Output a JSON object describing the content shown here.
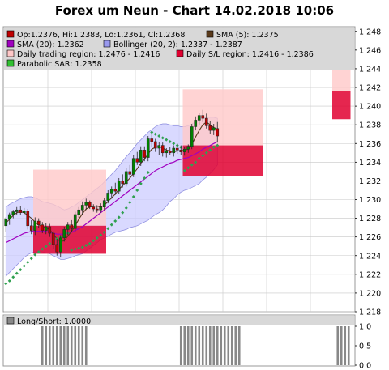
{
  "title": "Forex um Neun - Chart 14.02.2018 10:06",
  "colors": {
    "background": "#ffffff",
    "legend_bg": "#d4d4d4",
    "grid": "#c8c8c8",
    "candle_up": "#008000",
    "candle_down": "#c00000",
    "sma5": "#5a3a1a",
    "sma20": "#a000c0",
    "bollinger_fill": "#ccccff",
    "bollinger_line": "#8888dd",
    "daily_range": "#ffc8c8",
    "daily_sl": "#e00030",
    "sar": "#30a050",
    "longshort": "#888888"
  },
  "legend": [
    {
      "key": "ohlc",
      "label": "Op:1.2376, Hi:1.2383, Lo:1.2361, Cl:1.2368",
      "color": "#c00000"
    },
    {
      "key": "sma5",
      "label": "SMA (5): 1.2375",
      "color": "#5a3a1a"
    },
    {
      "key": "sma20",
      "label": "SMA (20): 1.2362",
      "color": "#a000c0"
    },
    {
      "key": "bollinger",
      "label": "Bollinger (20, 2): 1.2337 - 1.2387",
      "color": "#9999ee"
    },
    {
      "key": "daily_range",
      "label": "Daily trading region: 1.2476 - 1.2416",
      "color": "#ffc8c8"
    },
    {
      "key": "daily_sl",
      "label": "Daily S/L region: 1.2416 - 1.2386",
      "color": "#e00030"
    },
    {
      "key": "sar",
      "label": "Parabolic SAR: 1.2358",
      "color": "#30c030"
    }
  ],
  "chart_data": [
    {
      "type": "candlestick",
      "title": "Forex um Neun - Chart 14.02.2018 10:06",
      "ylim": [
        1.218,
        1.2485
      ],
      "yticks": [
        "1.218",
        "1.220",
        "1.222",
        "1.224",
        "1.226",
        "1.228",
        "1.230",
        "1.232",
        "1.234",
        "1.236",
        "1.238",
        "1.240",
        "1.242",
        "1.244",
        "1.246",
        "1.248"
      ],
      "candles": [
        {
          "o": 1.2272,
          "h": 1.2281,
          "l": 1.2265,
          "c": 1.2279
        },
        {
          "o": 1.2279,
          "h": 1.2286,
          "l": 1.2273,
          "c": 1.2284
        },
        {
          "o": 1.2284,
          "h": 1.2289,
          "l": 1.228,
          "c": 1.2287
        },
        {
          "o": 1.2287,
          "h": 1.2292,
          "l": 1.2284,
          "c": 1.2289
        },
        {
          "o": 1.2289,
          "h": 1.2293,
          "l": 1.2284,
          "c": 1.2286
        },
        {
          "o": 1.2286,
          "h": 1.2291,
          "l": 1.2283,
          "c": 1.2288
        },
        {
          "o": 1.2288,
          "h": 1.229,
          "l": 1.2268,
          "c": 1.2272
        },
        {
          "o": 1.2272,
          "h": 1.2278,
          "l": 1.2263,
          "c": 1.2267
        },
        {
          "o": 1.2267,
          "h": 1.2281,
          "l": 1.2262,
          "c": 1.2277
        },
        {
          "o": 1.2277,
          "h": 1.228,
          "l": 1.227,
          "c": 1.2273
        },
        {
          "o": 1.2273,
          "h": 1.2276,
          "l": 1.2264,
          "c": 1.2267
        },
        {
          "o": 1.2267,
          "h": 1.2275,
          "l": 1.2263,
          "c": 1.2271
        },
        {
          "o": 1.2271,
          "h": 1.2274,
          "l": 1.226,
          "c": 1.2264
        },
        {
          "o": 1.2264,
          "h": 1.2266,
          "l": 1.2247,
          "c": 1.2252
        },
        {
          "o": 1.2252,
          "h": 1.2258,
          "l": 1.224,
          "c": 1.2244
        },
        {
          "o": 1.2244,
          "h": 1.2262,
          "l": 1.2238,
          "c": 1.2259
        },
        {
          "o": 1.2259,
          "h": 1.2271,
          "l": 1.2255,
          "c": 1.2268
        },
        {
          "o": 1.2268,
          "h": 1.2276,
          "l": 1.2262,
          "c": 1.2273
        },
        {
          "o": 1.2273,
          "h": 1.2278,
          "l": 1.2265,
          "c": 1.2269
        },
        {
          "o": 1.2269,
          "h": 1.2287,
          "l": 1.2266,
          "c": 1.2284
        },
        {
          "o": 1.2284,
          "h": 1.2292,
          "l": 1.228,
          "c": 1.2289
        },
        {
          "o": 1.2289,
          "h": 1.2298,
          "l": 1.2284,
          "c": 1.2294
        },
        {
          "o": 1.2294,
          "h": 1.2301,
          "l": 1.2289,
          "c": 1.2297
        },
        {
          "o": 1.2297,
          "h": 1.2299,
          "l": 1.229,
          "c": 1.2292
        },
        {
          "o": 1.2292,
          "h": 1.2295,
          "l": 1.2287,
          "c": 1.229
        },
        {
          "o": 1.229,
          "h": 1.2294,
          "l": 1.2286,
          "c": 1.2289
        },
        {
          "o": 1.2289,
          "h": 1.2296,
          "l": 1.2286,
          "c": 1.2292
        },
        {
          "o": 1.2292,
          "h": 1.2302,
          "l": 1.2289,
          "c": 1.2299
        },
        {
          "o": 1.2299,
          "h": 1.231,
          "l": 1.2296,
          "c": 1.2307
        },
        {
          "o": 1.2307,
          "h": 1.2314,
          "l": 1.2301,
          "c": 1.2311
        },
        {
          "o": 1.2311,
          "h": 1.2318,
          "l": 1.2305,
          "c": 1.2309
        },
        {
          "o": 1.2309,
          "h": 1.2323,
          "l": 1.2306,
          "c": 1.232
        },
        {
          "o": 1.232,
          "h": 1.2327,
          "l": 1.2313,
          "c": 1.2317
        },
        {
          "o": 1.2317,
          "h": 1.2334,
          "l": 1.2314,
          "c": 1.233
        },
        {
          "o": 1.233,
          "h": 1.2337,
          "l": 1.2323,
          "c": 1.2327
        },
        {
          "o": 1.2327,
          "h": 1.2348,
          "l": 1.2324,
          "c": 1.2344
        },
        {
          "o": 1.2344,
          "h": 1.2351,
          "l": 1.2337,
          "c": 1.234
        },
        {
          "o": 1.234,
          "h": 1.2357,
          "l": 1.2336,
          "c": 1.2353
        },
        {
          "o": 1.2353,
          "h": 1.2357,
          "l": 1.2341,
          "c": 1.2345
        },
        {
          "o": 1.2345,
          "h": 1.2368,
          "l": 1.2341,
          "c": 1.2365
        },
        {
          "o": 1.2365,
          "h": 1.237,
          "l": 1.2356,
          "c": 1.2362
        },
        {
          "o": 1.2362,
          "h": 1.2365,
          "l": 1.2351,
          "c": 1.2355
        },
        {
          "o": 1.2355,
          "h": 1.2362,
          "l": 1.2348,
          "c": 1.2358
        },
        {
          "o": 1.2358,
          "h": 1.2361,
          "l": 1.2346,
          "c": 1.235
        },
        {
          "o": 1.235,
          "h": 1.2355,
          "l": 1.2345,
          "c": 1.2352
        },
        {
          "o": 1.2352,
          "h": 1.2356,
          "l": 1.2348,
          "c": 1.235
        },
        {
          "o": 1.235,
          "h": 1.2358,
          "l": 1.2346,
          "c": 1.2355
        },
        {
          "o": 1.2355,
          "h": 1.236,
          "l": 1.2349,
          "c": 1.2353
        },
        {
          "o": 1.2353,
          "h": 1.2358,
          "l": 1.2348,
          "c": 1.2351
        },
        {
          "o": 1.2351,
          "h": 1.2356,
          "l": 1.2347,
          "c": 1.2354
        },
        {
          "o": 1.2354,
          "h": 1.2359,
          "l": 1.235,
          "c": 1.2357
        },
        {
          "o": 1.2357,
          "h": 1.2381,
          "l": 1.2354,
          "c": 1.2378
        },
        {
          "o": 1.2378,
          "h": 1.2389,
          "l": 1.2374,
          "c": 1.2385
        },
        {
          "o": 1.2385,
          "h": 1.2393,
          "l": 1.238,
          "c": 1.239
        },
        {
          "o": 1.239,
          "h": 1.2396,
          "l": 1.2383,
          "c": 1.2387
        },
        {
          "o": 1.2387,
          "h": 1.2392,
          "l": 1.2376,
          "c": 1.2379
        },
        {
          "o": 1.2379,
          "h": 1.2384,
          "l": 1.237,
          "c": 1.2374
        },
        {
          "o": 1.2374,
          "h": 1.2381,
          "l": 1.2369,
          "c": 1.2377
        },
        {
          "o": 1.2376,
          "h": 1.2383,
          "l": 1.2361,
          "c": 1.2368
        }
      ],
      "sma5": [
        1.2275,
        1.2279,
        1.2283,
        1.2286,
        1.2287,
        1.2286,
        1.2283,
        1.228,
        1.2276,
        1.2273,
        1.2271,
        1.227,
        1.2268,
        1.2263,
        1.2258,
        1.2255,
        1.2256,
        1.2261,
        1.2266,
        1.2272,
        1.2279,
        1.2285,
        1.229,
        1.2292,
        1.2293,
        1.2293,
        1.2292,
        1.2294,
        1.2298,
        1.2302,
        1.2306,
        1.2311,
        1.2315,
        1.2319,
        1.2323,
        1.2328,
        1.2333,
        1.2339,
        1.2343,
        1.2349,
        1.2354,
        1.2356,
        1.2357,
        1.2355,
        1.2353,
        1.2352,
        1.2351,
        1.2352,
        1.2352,
        1.2353,
        1.2354,
        1.2359,
        1.2367,
        1.2374,
        1.238,
        1.2383,
        1.238,
        1.2377,
        1.2375
      ],
      "sma20": [
        1.2254,
        1.2256,
        1.2258,
        1.226,
        1.2262,
        1.2264,
        1.2265,
        1.2266,
        1.2266,
        1.2266,
        1.2266,
        1.2266,
        1.2265,
        1.2264,
        1.2263,
        1.2263,
        1.2263,
        1.2264,
        1.2265,
        1.2267,
        1.2269,
        1.2271,
        1.2274,
        1.2277,
        1.228,
        1.2283,
        1.2286,
        1.2289,
        1.2292,
        1.2295,
        1.2298,
        1.2301,
        1.2304,
        1.2307,
        1.231,
        1.2313,
        1.2316,
        1.2319,
        1.2322,
        1.2325,
        1.2328,
        1.2331,
        1.2333,
        1.2335,
        1.2337,
        1.2339,
        1.234,
        1.2342,
        1.2343,
        1.2344,
        1.2345,
        1.2347,
        1.2349,
        1.2351,
        1.2354,
        1.2356,
        1.2358,
        1.236,
        1.2362
      ],
      "boll_upper": [
        1.2292,
        1.2295,
        1.2297,
        1.2299,
        1.2301,
        1.2302,
        1.2303,
        1.2303,
        1.2302,
        1.23,
        1.2298,
        1.2297,
        1.2296,
        1.2295,
        1.2293,
        1.2291,
        1.2289,
        1.229,
        1.2292,
        1.2294,
        1.2297,
        1.23,
        1.2303,
        1.2306,
        1.2309,
        1.2312,
        1.2315,
        1.2319,
        1.2323,
        1.2327,
        1.2331,
        1.2336,
        1.2341,
        1.2346,
        1.235,
        1.2355,
        1.236,
        1.2364,
        1.2368,
        1.2372,
        1.2375,
        1.2378,
        1.238,
        1.2381,
        1.2381,
        1.238,
        1.2379,
        1.2379,
        1.2378,
        1.2378,
        1.2379,
        1.2381,
        1.2383,
        1.2385,
        1.2387,
        1.2388,
        1.2388,
        1.2388,
        1.2387
      ],
      "boll_lower": [
        1.2218,
        1.2222,
        1.2226,
        1.223,
        1.2234,
        1.2238,
        1.2241,
        1.2243,
        1.2244,
        1.2244,
        1.2244,
        1.2243,
        1.2242,
        1.224,
        1.2238,
        1.2236,
        1.2236,
        1.2237,
        1.2238,
        1.224,
        1.2241,
        1.2242,
        1.2245,
        1.2248,
        1.2251,
        1.2254,
        1.2257,
        1.2259,
        1.2261,
        1.2263,
        1.2265,
        1.2266,
        1.2267,
        1.2268,
        1.227,
        1.2271,
        1.2272,
        1.2274,
        1.2276,
        1.2278,
        1.2281,
        1.2284,
        1.2286,
        1.2289,
        1.2293,
        1.2298,
        1.2301,
        1.2305,
        1.2308,
        1.231,
        1.2311,
        1.2313,
        1.2315,
        1.2317,
        1.2321,
        1.2324,
        1.2328,
        1.2332,
        1.2337
      ],
      "sar": [
        1.221,
        1.2213,
        1.2217,
        1.2221,
        1.2225,
        1.2229,
        1.2233,
        1.2237,
        1.2241,
        1.2244,
        1.2247,
        1.225,
        1.2253,
        1.2256,
        1.2258,
        1.226,
        1.2262,
        1.2264,
        1.2246,
        1.2247,
        1.2248,
        1.2249,
        1.2251,
        1.2253,
        1.2256,
        1.2259,
        1.2262,
        1.2265,
        1.2269,
        1.2273,
        1.2277,
        1.2281,
        1.2286,
        1.2291,
        1.2297,
        1.2303,
        1.231,
        1.2317,
        1.2323,
        1.2329,
        1.2372,
        1.237,
        1.2368,
        1.2366,
        1.2364,
        1.2362,
        1.236,
        1.2358,
        1.2356,
        1.2331,
        1.2334,
        1.2337,
        1.234,
        1.2344,
        1.2347,
        1.235,
        1.2353,
        1.2356,
        1.2358
      ],
      "daily_regions": [
        {
          "x_start": 8,
          "x_end": 28,
          "range_high": 1.2332,
          "range_low": 1.2272,
          "sl_high": 1.2272,
          "sl_low": 1.2242
        },
        {
          "x_start": 49,
          "x_end": 71,
          "range_high": 1.2418,
          "range_low": 1.2358,
          "sl_high": 1.2358,
          "sl_low": 1.2325
        },
        {
          "x_start": 90,
          "x_end": 95,
          "range_high": 1.2476,
          "range_low": 1.2416,
          "sl_high": 1.2416,
          "sl_low": 1.2386
        }
      ]
    },
    {
      "type": "bar",
      "legend": "Long/Short: 1.0000",
      "ylim": [
        0,
        1
      ],
      "yticks": [
        "0.0",
        "0.5",
        "1.0"
      ],
      "bar_groups": [
        {
          "from": 10,
          "to": 22
        },
        {
          "from": 48,
          "to": 64
        },
        {
          "from": 91,
          "to": 94
        }
      ],
      "value": 1.0
    }
  ]
}
